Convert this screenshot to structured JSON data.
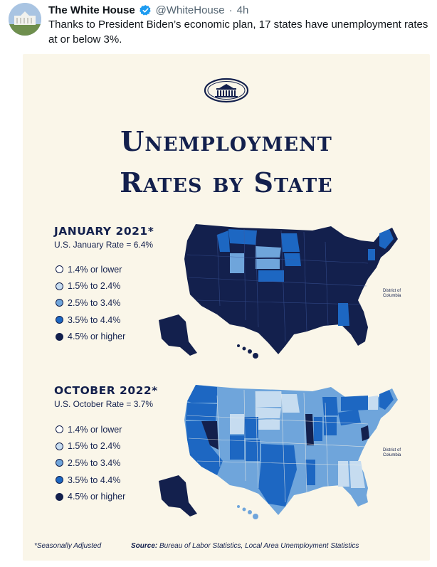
{
  "tweet": {
    "display_name": "The White House",
    "handle": "@WhiteHouse",
    "separator": "·",
    "time": "4h",
    "text": "Thanks to President Biden’s economic plan, 17 states have unemployment rates at or below 3%."
  },
  "infographic": {
    "title_line1": "Unemployment",
    "title_line2": "Rates by State",
    "panels": [
      {
        "title": "JANUARY 2021*",
        "subtitle": "U.S. January Rate = 6.4%"
      },
      {
        "title": "OCTOBER 2022*",
        "subtitle": "U.S. October Rate = 3.7%"
      }
    ],
    "legend": [
      {
        "label": "1.4% or lower",
        "color": "#ffffff"
      },
      {
        "label": "1.5% to 2.4%",
        "color": "#c6dcf0"
      },
      {
        "label": "2.5% to 3.4%",
        "color": "#6fa5db"
      },
      {
        "label": "3.5% to 4.4%",
        "color": "#1d67c2"
      },
      {
        "label": "4.5% or higher",
        "color": "#13204d"
      }
    ],
    "dc_label": "District of Columbia",
    "footnote": "*Seasonally Adjusted",
    "source_label": "Source:",
    "source_text": "Bureau of Labor Statistics, Local Area Unemployment Statistics"
  },
  "colors": {
    "card_bg": "#faf6e9",
    "navy": "#13204d",
    "verified": "#1d9bf0"
  }
}
